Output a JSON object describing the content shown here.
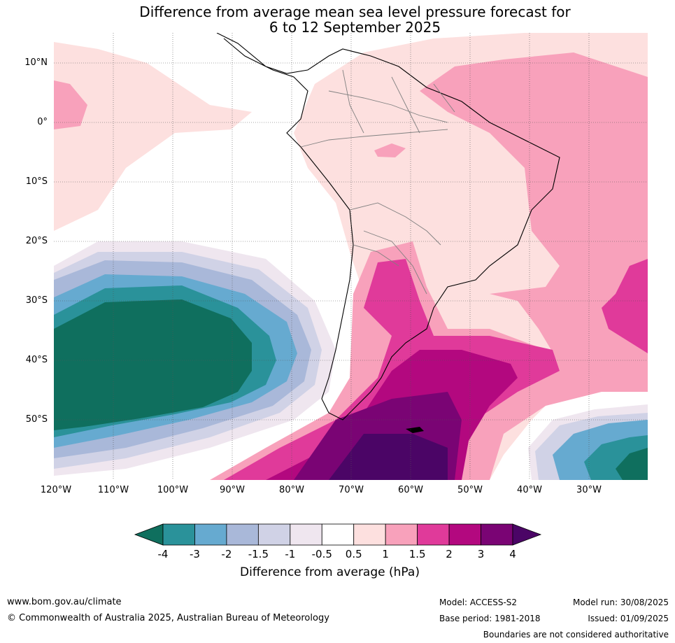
{
  "title_line1": "Difference from average mean sea level pressure forecast for",
  "title_line2": "6 to 12 September 2025",
  "lat_labels": [
    "10°N",
    "0°",
    "10°S",
    "20°S",
    "30°S",
    "40°S",
    "50°S"
  ],
  "lon_labels": [
    "120°W",
    "110°W",
    "100°W",
    "90°W",
    "80°W",
    "70°W",
    "60°W",
    "50°W",
    "40°W",
    "30°W"
  ],
  "colorbar": {
    "ticks": [
      "-4",
      "-3",
      "-2",
      "-1.5",
      "-1",
      "-0.5",
      "0.5",
      "1",
      "1.5",
      "2",
      "3",
      "4"
    ],
    "colors": [
      "#0f6f5e",
      "#2a929a",
      "#66aad0",
      "#a9b8d9",
      "#d0d2e6",
      "#efe6ef",
      "#ffffff",
      "#fde0df",
      "#f8a1bb",
      "#e03a9a",
      "#b3087f",
      "#7a0474",
      "#4b0566"
    ],
    "label": "Difference from average (hPa)"
  },
  "footer": {
    "url": "www.bom.gov.au/climate",
    "copyright": "© Commonwealth of Australia 2025, Australian Bureau of Meteorology",
    "model": "Model: ACCESS-S2",
    "base_period": "Base period: 1981-2018",
    "model_run": "Model run: 30/08/2025",
    "issued": "Issued: 01/09/2025",
    "boundaries": "Boundaries are not considered authoritative"
  }
}
